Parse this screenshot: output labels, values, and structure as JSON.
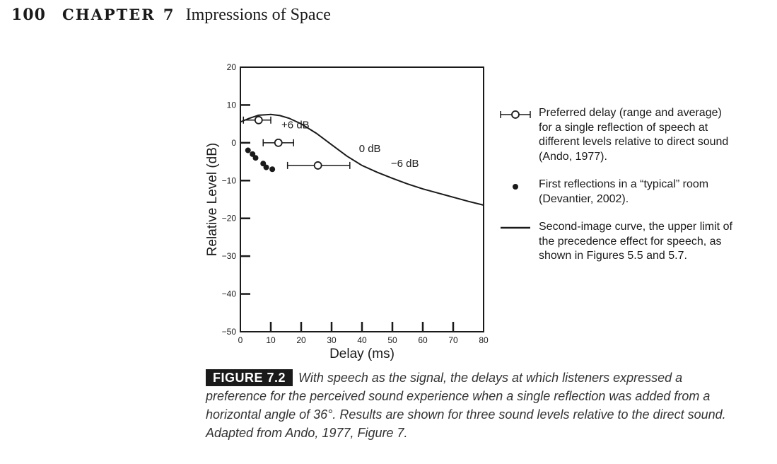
{
  "header": {
    "page_number": "100",
    "chapter_label": "CHAPTER",
    "chapter_number": "7",
    "chapter_title": "Impressions of Space"
  },
  "chart_data": {
    "type": "scatter",
    "xlabel": "Delay (ms)",
    "ylabel": "Relative Level (dB)",
    "xlim": [
      0,
      80
    ],
    "ylim": [
      -50,
      20
    ],
    "x_ticks": [
      0,
      10,
      20,
      30,
      40,
      50,
      60,
      70,
      80
    ],
    "y_ticks": [
      20,
      10,
      0,
      -10,
      -20,
      -30,
      -40,
      -50
    ],
    "y_tick_labels": [
      "20",
      "10",
      "0",
      "−10",
      "−20",
      "−30",
      "−40",
      "−50"
    ],
    "grid": false,
    "preferred_delay": [
      {
        "level_label": "+6 dB",
        "y": 6,
        "x_avg": 6,
        "x_min": 1,
        "x_max": 10
      },
      {
        "level_label": "0 dB",
        "y": 0,
        "x_avg": 12.5,
        "x_min": 7.5,
        "x_max": 17.5
      },
      {
        "level_label": "−6 dB",
        "y": -6,
        "x_avg": 25.5,
        "x_min": 15.5,
        "x_max": 36
      }
    ],
    "first_reflections": {
      "x": [
        2.5,
        4,
        5,
        7.5,
        8.5,
        10.5
      ],
      "y": [
        -2,
        -3,
        -4,
        -5.5,
        -6.5,
        -7
      ]
    },
    "second_image_curve": {
      "x": [
        0,
        3,
        6,
        10,
        13,
        16,
        20,
        25,
        30,
        35,
        40,
        45,
        50,
        55,
        60,
        65,
        70,
        75,
        80
      ],
      "y": [
        5.5,
        6.5,
        7.3,
        7.5,
        7.2,
        6.5,
        5,
        2.5,
        -0.5,
        -3.5,
        -6,
        -7.8,
        -9.4,
        -10.9,
        -12.2,
        -13.3,
        -14.4,
        -15.5,
        -16.5
      ]
    },
    "legend": {
      "placement": "right",
      "entries": [
        {
          "symbol": "range-open-circle",
          "lines": [
            "Preferred delay (range and average)",
            "for a single reflection of speech at",
            "different levels relative to direct sound",
            "(Ando, 1977)."
          ]
        },
        {
          "symbol": "filled-dot",
          "lines": [
            "First reflections in a “typical” room",
            "(Devantier, 2002)."
          ]
        },
        {
          "symbol": "line",
          "lines": [
            "Second-image curve, the upper limit of",
            "the precedence effect for speech, as",
            "shown in Figures 5.5 and 5.7."
          ]
        }
      ]
    }
  },
  "caption": {
    "label": "FIGURE 7.2",
    "text": "With speech as the signal, the delays at which listeners expressed a preference for the perceived sound experience when a single reflection was added from a horizontal angle of 36°. Results are shown for three sound levels relative to the direct sound. Adapted from Ando, 1977, Figure 7."
  }
}
